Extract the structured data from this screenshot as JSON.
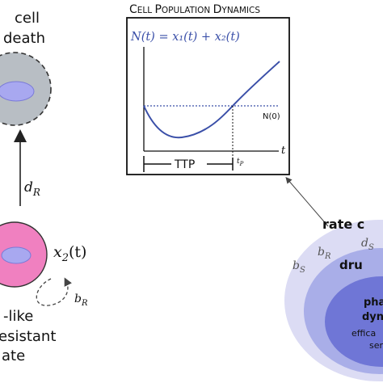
{
  "left": {
    "cell_death_line1": "cell",
    "cell_death_line2": "death",
    "death_rate_main": "d",
    "death_rate_sub": "R",
    "pop_label_main": "x",
    "pop_label_sub": "2",
    "pop_label_arg": "(t)",
    "birth_rate_main": "b",
    "birth_rate_sub": "R",
    "caption_line1": "-like",
    "caption_line2": "esistant",
    "caption_line3": "ate"
  },
  "panel": {
    "title_cap1": "C",
    "title_rest1": "ELL ",
    "title_cap2": "P",
    "title_rest2": "OPULATION ",
    "title_cap3": "D",
    "title_rest3": "YNAMICS",
    "equation": "N(t) = x₁(t) + x₂(t)",
    "baseline_label": "N(0)",
    "x_axis_label": "t",
    "ttp_label": "TTP",
    "tp_main": "t",
    "tp_sub": "P"
  },
  "ellipse": {
    "rate_label": "rate c",
    "ds_main": "d",
    "ds_sub": "S",
    "br_main": "b",
    "br_sub": "R",
    "bs_main": "b",
    "bs_sub": "S",
    "drug_label": "dru",
    "pharma_line1": "pha",
    "pharma_line2": "dyn",
    "efficacy_line1": "effica",
    "efficacy_line2": "ser"
  },
  "colors": {
    "curve": "#3a4fa8",
    "ellipse_outer": "#dcdcf4",
    "ellipse_mid": "#a9aee8",
    "ellipse_inner": "#6f76d6",
    "pink_cell": "#f080c0",
    "gray_cell": "#b8bec4",
    "nucleus": "#a8a8f0"
  }
}
